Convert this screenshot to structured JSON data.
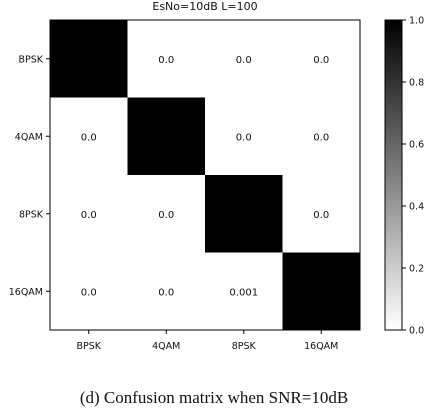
{
  "chart_data": {
    "type": "heatmap",
    "title": "EsNo=10dB L=100",
    "xlabel": "",
    "ylabel": "",
    "row_labels": [
      "BPSK",
      "4QAM",
      "8PSK",
      "16QAM"
    ],
    "col_labels": [
      "BPSK",
      "4QAM",
      "8PSK",
      "16QAM"
    ],
    "values": [
      [
        1.0,
        0.0,
        0.0,
        0.0
      ],
      [
        0.0,
        1.0,
        0.0,
        0.0
      ],
      [
        0.0,
        0.0,
        1.0,
        0.0
      ],
      [
        0.0,
        0.0,
        0.001,
        1.0
      ]
    ],
    "cell_labels": [
      [
        "",
        "0.0",
        "0.0",
        "0.0"
      ],
      [
        "0.0",
        "",
        "0.0",
        "0.0"
      ],
      [
        "0.0",
        "0.0",
        "",
        "0.0"
      ],
      [
        "0.0",
        "0.0",
        "0.001",
        ""
      ]
    ],
    "colorbar": {
      "range": [
        0.0,
        1.0
      ],
      "ticks": [
        "0.0",
        "0.2",
        "0.4",
        "0.6",
        "0.8",
        "1.0"
      ],
      "colormap": "gray-reversed"
    },
    "colors": {
      "low": "#ffffff",
      "high": "#000000"
    }
  },
  "caption": "(d) Confusion matrix when SNR=10dB"
}
